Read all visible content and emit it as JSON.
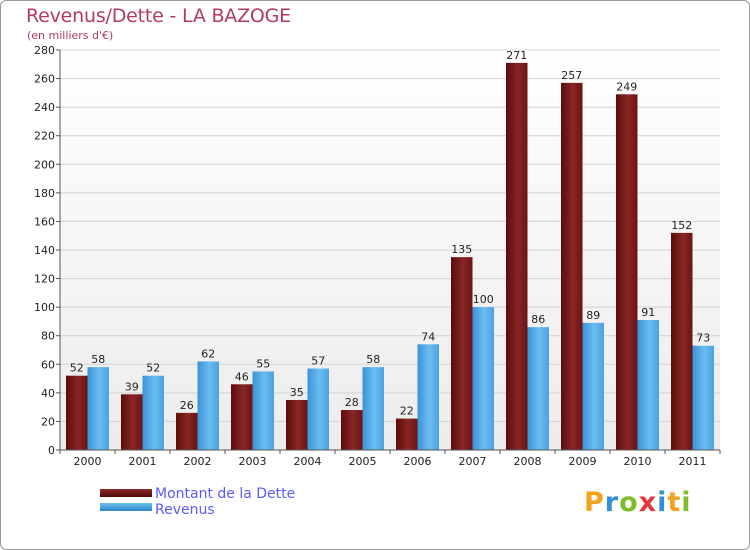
{
  "chart_data": {
    "type": "bar",
    "title": "Revenus/Dette - LA BAZOGE",
    "subtitle": "(en milliers d'€)",
    "xlabel": "",
    "ylabel": "",
    "ylim": [
      0,
      280
    ],
    "yticks": [
      "0",
      "20",
      "40",
      "60",
      "80",
      "100",
      "120",
      "140",
      "160",
      "180",
      "200",
      "220",
      "240",
      "260",
      "280"
    ],
    "grid": true,
    "categories": [
      "2000",
      "2001",
      "2002",
      "2003",
      "2004",
      "2005",
      "2006",
      "2007",
      "2008",
      "2009",
      "2010",
      "2011"
    ],
    "series": [
      {
        "name": "Montant de la Dette",
        "color": "#6e1616",
        "values": [
          52,
          39,
          26,
          46,
          35,
          28,
          22,
          135,
          271,
          257,
          249,
          152
        ]
      },
      {
        "name": "Revenus",
        "color": "#3f9be0",
        "values": [
          58,
          52,
          62,
          55,
          57,
          58,
          74,
          100,
          86,
          89,
          91,
          73
        ]
      }
    ],
    "legend_position": "bottom-left"
  },
  "logo": {
    "letters": [
      "P",
      "r",
      "o",
      "x",
      "i",
      "t",
      "i"
    ],
    "colors": [
      "#f3a21b",
      "#2f8fd8",
      "#7cbf2a",
      "#e03a3a",
      "#2f8fd8",
      "#f3a21b",
      "#7cbf2a"
    ]
  }
}
